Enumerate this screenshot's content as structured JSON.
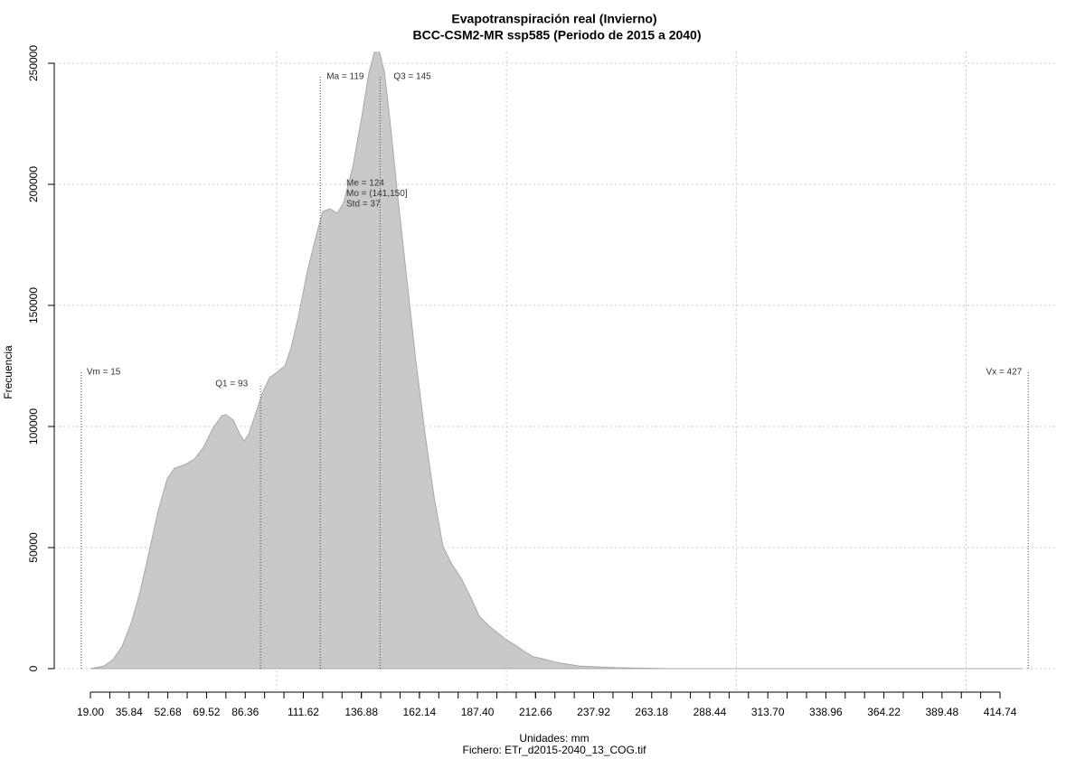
{
  "chart_data": {
    "type": "area",
    "title": "Evapotranspiración real (Invierno)",
    "subtitle": "BCC-CSM2-MR ssp585 (Periodo de 2015 a 2040)",
    "x_label": "Unidades: mm",
    "y_label": "Frecuencia",
    "footer": "Fichero: ETr_d2015-2040_13_COG.tif",
    "color": "#c9c9c9",
    "x": [
      19.0,
      24.9,
      28.8,
      32.8,
      36.7,
      40.6,
      44.6,
      48.5,
      52.4,
      55.6,
      60.3,
      64.3,
      68.2,
      72.1,
      76.1,
      78.0,
      81.2,
      83.9,
      85.9,
      87.9,
      90.6,
      93.8,
      96.9,
      99.6,
      103.6,
      106.3,
      109.5,
      113.4,
      117.3,
      120.1,
      123.2,
      126.4,
      129.1,
      133.1,
      137.0,
      140.2,
      142.1,
      143.3,
      144.9,
      146.9,
      149.6,
      152.8,
      156.7,
      160.6,
      164.6,
      168.5,
      172.4,
      176.4,
      180.3,
      184.2,
      188.2,
      192.1,
      196.0,
      200.0,
      203.9,
      207.8,
      211.8,
      215.7,
      221.6,
      231.4,
      247.2,
      270.8,
      294.4,
      424.2
    ],
    "values": [
      0,
      1100,
      3700,
      9300,
      18700,
      31700,
      48500,
      65300,
      78400,
      82800,
      84300,
      86600,
      91400,
      98900,
      104500,
      104900,
      102600,
      97000,
      94000,
      97000,
      104500,
      113800,
      120100,
      122000,
      125000,
      132500,
      145500,
      164200,
      179100,
      188800,
      189900,
      188100,
      192200,
      207100,
      227600,
      246300,
      253000,
      258000,
      254000,
      246300,
      223900,
      194000,
      160400,
      126900,
      97000,
      70900,
      50400,
      42900,
      37300,
      29900,
      21600,
      17900,
      14900,
      11900,
      9700,
      7100,
      4900,
      4100,
      2600,
      1100,
      400,
      0,
      0,
      0
    ],
    "xlim": [
      3.26,
      439.9
    ],
    "ylim": [
      -9700,
      254850
    ],
    "yticks": [
      0,
      50000,
      100000,
      150000,
      200000,
      250000
    ],
    "xticks": [
      {
        "value": 19,
        "label": "19.00"
      },
      {
        "value": 27.42,
        "label": null
      },
      35.84,
      {
        "value": 44.26,
        "label": null
      },
      52.68,
      {
        "value": 61.1,
        "label": null
      },
      69.52,
      {
        "value": 77.94,
        "label": null
      },
      86.36,
      {
        "value": 94.78,
        "label": null
      },
      {
        "value": 103.2,
        "label": null
      },
      {
        "value": 111.62,
        "label": null
      },
      111.62,
      {
        "value": 120.04,
        "label": null
      },
      {
        "value": 128.46,
        "label": null
      },
      {
        "value": 136.88,
        "label": null
      },
      136.88,
      {
        "value": 145.3,
        "label": null
      },
      {
        "value": 153.72,
        "label": null
      },
      {
        "value": 162.14,
        "label": null
      },
      162.14,
      {
        "value": 170.56,
        "label": null
      },
      {
        "value": 178.98,
        "label": null
      },
      {
        "value": 187.4,
        "label": "187.40"
      },
      {
        "value": 195.82,
        "label": null
      },
      {
        "value": 204.24,
        "label": null
      },
      {
        "value": 212.66,
        "label": null
      },
      212.66,
      {
        "value": 221.08,
        "label": null
      },
      {
        "value": 229.5,
        "label": null
      },
      237.92,
      {
        "value": 246.34,
        "label": null
      },
      {
        "value": 254.76,
        "label": null
      },
      263.18,
      {
        "value": 271.6,
        "label": null
      },
      {
        "value": 280.02,
        "label": null
      },
      288.44,
      {
        "value": 296.86,
        "label": null
      },
      {
        "value": 305.28,
        "label": null
      },
      {
        "value": 313.7,
        "label": "313.70"
      },
      {
        "value": 322.12,
        "label": null
      },
      {
        "value": 330.54,
        "label": null
      },
      338.96,
      {
        "value": 347.38,
        "label": null
      },
      {
        "value": 355.8,
        "label": null
      },
      364.22,
      {
        "value": 372.64,
        "label": null
      },
      {
        "value": 381.06,
        "label": null
      },
      389.48,
      {
        "value": 397.9,
        "label": null
      },
      {
        "value": 406.32,
        "label": null
      },
      414.74
    ],
    "xgrid": [
      100,
      200,
      300,
      400
    ],
    "grid": true,
    "markers": [
      {
        "label": "Vm = 15",
        "x": 15
      },
      {
        "label": "Q1 = 93",
        "x": 93
      },
      {
        "label": "Ma = 119",
        "x": 119
      },
      {
        "label": "Q3 = 145",
        "x": 145
      },
      {
        "label": "Vx = 427",
        "x": 427
      }
    ],
    "stats": [
      "Me = 124",
      "Mo = (141,150]",
      "Std = 37"
    ]
  }
}
